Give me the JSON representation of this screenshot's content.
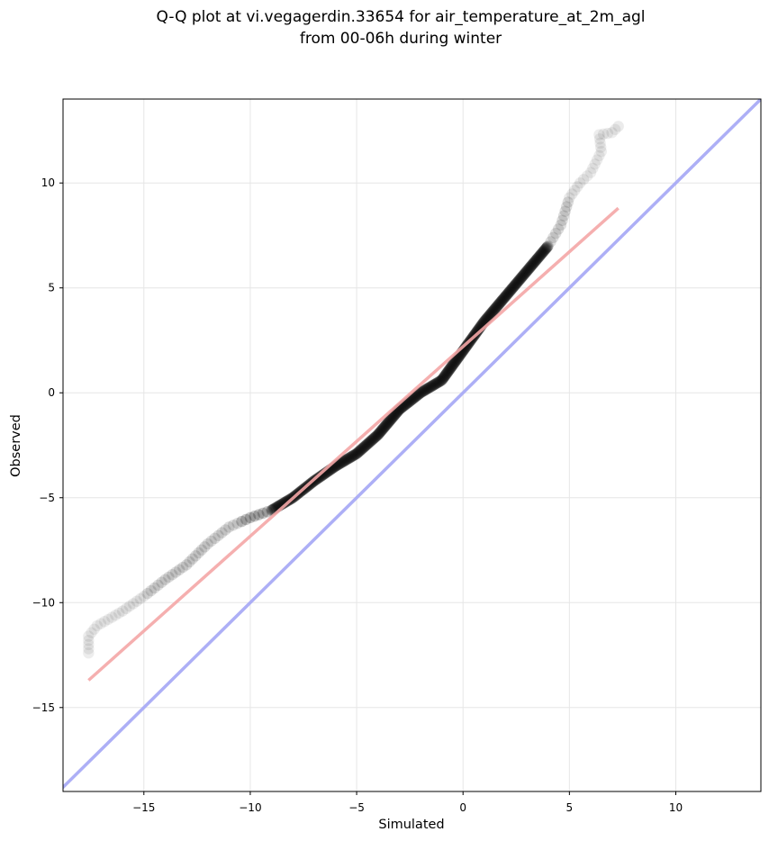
{
  "chart_data": {
    "type": "scatter",
    "title_line1": "Q-Q plot at vi.vegagerdin.33654 for air_temperature_at_2m_agl",
    "title_line2": "from 00-06h during winter",
    "xlabel": "Simulated",
    "ylabel": "Observed",
    "xlim": [
      -18.8,
      14
    ],
    "ylim": [
      -19,
      14
    ],
    "xticks": [
      -15,
      -10,
      -5,
      0,
      5,
      10
    ],
    "yticks": [
      -15,
      -10,
      -5,
      0,
      5,
      10
    ],
    "xtick_labels": [
      "−15",
      "−10",
      "−5",
      "0",
      "5",
      "10"
    ],
    "ytick_labels": [
      "−15",
      "−10",
      "−5",
      "0",
      "5",
      "10"
    ],
    "grid": true,
    "quantile_knots": [
      [
        -17.6,
        -12.4
      ],
      [
        -17.6,
        -11.6
      ],
      [
        -17.2,
        -11.1
      ],
      [
        -16.5,
        -10.7
      ],
      [
        -16.0,
        -10.4
      ],
      [
        -15.0,
        -9.7
      ],
      [
        -14.0,
        -8.9
      ],
      [
        -13.0,
        -8.2
      ],
      [
        -12.0,
        -7.2
      ],
      [
        -11.0,
        -6.4
      ],
      [
        -10.0,
        -5.95
      ],
      [
        -9.0,
        -5.6
      ],
      [
        -8.0,
        -5.0
      ],
      [
        -7.0,
        -4.2
      ],
      [
        -6.0,
        -3.5
      ],
      [
        -5.0,
        -2.9
      ],
      [
        -4.0,
        -2.0
      ],
      [
        -3.0,
        -0.8
      ],
      [
        -2.0,
        0.0
      ],
      [
        -1.0,
        0.6
      ],
      [
        0.0,
        2.0
      ],
      [
        1.0,
        3.4
      ],
      [
        2.0,
        4.6
      ],
      [
        3.0,
        5.8
      ],
      [
        4.0,
        7.0
      ],
      [
        4.6,
        8.0
      ],
      [
        5.0,
        9.3
      ],
      [
        5.5,
        10.0
      ],
      [
        6.0,
        10.5
      ],
      [
        6.5,
        11.5
      ],
      [
        6.4,
        12.3
      ],
      [
        7.0,
        12.4
      ],
      [
        7.3,
        12.7
      ]
    ],
    "fit_line": {
      "x": [
        -17.6,
        7.3
      ],
      "y": [
        -13.7,
        8.8
      ],
      "color": "#f4a6a6"
    },
    "identity_line": {
      "x": [
        -19,
        14
      ],
      "y": [
        -19,
        14
      ],
      "color": "#a9abf6"
    },
    "point_color": "#000000"
  }
}
